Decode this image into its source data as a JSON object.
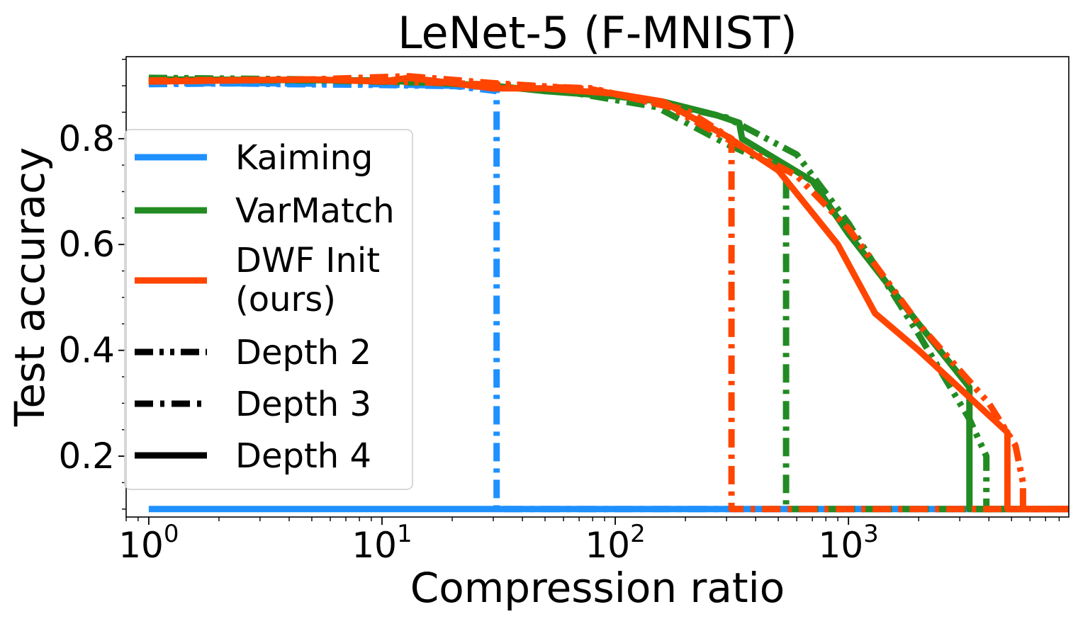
{
  "chart_data": {
    "type": "line",
    "title": "LeNet-5 (F-MNIST)",
    "xlabel": "Compression ratio",
    "ylabel": "Test accuracy",
    "xscale": "log",
    "xlim": [
      0.8,
      8800
    ],
    "ylim": [
      0.085,
      0.955
    ],
    "xticks": [
      {
        "value": 1,
        "base": "10",
        "exp": "0"
      },
      {
        "value": 10,
        "base": "10",
        "exp": "1"
      },
      {
        "value": 100,
        "base": "10",
        "exp": "2"
      },
      {
        "value": 1000,
        "base": "10",
        "exp": "3"
      }
    ],
    "yticks": [
      {
        "value": 0.2,
        "label": "0.2"
      },
      {
        "value": 0.4,
        "label": "0.4"
      },
      {
        "value": 0.6,
        "label": "0.6"
      },
      {
        "value": 0.8,
        "label": "0.8"
      }
    ],
    "grid": false,
    "legend_position": "left",
    "legend": [
      {
        "label": "Kaiming",
        "color": "#1e90ff",
        "dash": "solid"
      },
      {
        "label": "VarMatch",
        "color": "#228b22",
        "dash": "solid"
      },
      {
        "label": "DWF Init\n(ours)",
        "color": "#ff4500",
        "dash": "solid"
      },
      {
        "label": "Depth 2",
        "color": "#000000",
        "dash": "dashdotdot"
      },
      {
        "label": "Depth 3",
        "color": "#000000",
        "dash": "dashdot"
      },
      {
        "label": "Depth 4",
        "color": "#000000",
        "dash": "solid"
      }
    ],
    "series": [
      {
        "init": "Kaiming",
        "depth": 2,
        "color": "#1e90ff",
        "dash": "dashdotdot",
        "x": [
          1,
          2,
          4,
          8,
          16,
          30
        ],
        "y": [
          0.905,
          0.905,
          0.903,
          0.902,
          0.9,
          0.898
        ]
      },
      {
        "init": "Kaiming",
        "depth": 3,
        "color": "#1e90ff",
        "dash": "dashdot",
        "x": [
          1,
          3,
          10,
          20,
          31,
          31,
          8800
        ],
        "y": [
          0.903,
          0.905,
          0.903,
          0.9,
          0.89,
          0.1,
          0.1
        ]
      },
      {
        "init": "Kaiming",
        "depth": 4,
        "color": "#1e90ff",
        "dash": "solid",
        "x": [
          1,
          8800
        ],
        "y": [
          0.1,
          0.1
        ]
      },
      {
        "init": "VarMatch",
        "depth": 2,
        "color": "#228b22",
        "dash": "dashdotdot",
        "x": [
          1,
          5,
          20,
          60,
          150,
          300,
          600,
          1000,
          2000,
          3300,
          3900,
          3900,
          8800
        ],
        "y": [
          0.915,
          0.912,
          0.905,
          0.895,
          0.87,
          0.84,
          0.77,
          0.64,
          0.43,
          0.27,
          0.2,
          0.1,
          0.1
        ]
      },
      {
        "init": "VarMatch",
        "depth": 3,
        "color": "#228b22",
        "dash": "dashdot",
        "x": [
          1,
          5,
          20,
          60,
          150,
          300,
          540,
          540,
          8800
        ],
        "y": [
          0.91,
          0.91,
          0.905,
          0.89,
          0.86,
          0.79,
          0.74,
          0.1,
          0.1
        ]
      },
      {
        "init": "VarMatch",
        "depth": 4,
        "color": "#228b22",
        "dash": "solid",
        "x": [
          1,
          10,
          30,
          50,
          100,
          160,
          270,
          340,
          350,
          700,
          1000,
          2000,
          3300,
          3300,
          8800
        ],
        "y": [
          0.912,
          0.91,
          0.9,
          0.89,
          0.88,
          0.87,
          0.845,
          0.83,
          0.8,
          0.72,
          0.62,
          0.45,
          0.33,
          0.1,
          0.1
        ]
      },
      {
        "init": "DWF Init (ours)",
        "depth": 2,
        "color": "#ff4500",
        "dash": "dashdotdot",
        "x": [
          1,
          5,
          20,
          80,
          170,
          300,
          600,
          1000,
          2000,
          4000,
          5200,
          5600,
          5600,
          8800
        ],
        "y": [
          0.91,
          0.912,
          0.905,
          0.895,
          0.86,
          0.8,
          0.73,
          0.63,
          0.45,
          0.3,
          0.22,
          0.15,
          0.1,
          0.1
        ]
      },
      {
        "init": "DWF Init (ours)",
        "depth": 3,
        "color": "#ff4500",
        "dash": "dashdot",
        "x": [
          1,
          5,
          13,
          30,
          80,
          200,
          315,
          315,
          8800
        ],
        "y": [
          0.908,
          0.912,
          0.918,
          0.905,
          0.893,
          0.855,
          0.8,
          0.1,
          0.1
        ]
      },
      {
        "init": "DWF Init (ours)",
        "depth": 4,
        "color": "#ff4500",
        "dash": "solid",
        "x": [
          1,
          5,
          10,
          13,
          20,
          30,
          50,
          100,
          160,
          300,
          500,
          900,
          1300,
          2000,
          4800,
          4800,
          8800
        ],
        "y": [
          0.908,
          0.912,
          0.908,
          0.915,
          0.905,
          0.895,
          0.895,
          0.885,
          0.87,
          0.805,
          0.74,
          0.6,
          0.47,
          0.4,
          0.245,
          0.1,
          0.1
        ]
      }
    ]
  }
}
